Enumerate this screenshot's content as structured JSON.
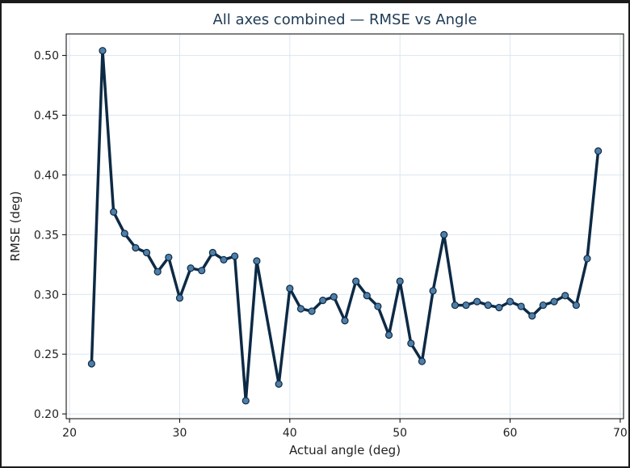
{
  "chart_data": {
    "type": "line",
    "title": "All axes combined — RMSE vs Angle",
    "xlabel": "Actual angle (deg)",
    "ylabel": "RMSE (deg)",
    "xlim": [
      19.7,
      70.3
    ],
    "ylim": [
      0.196,
      0.518
    ],
    "xticks": [
      20,
      30,
      40,
      50,
      60,
      70
    ],
    "yticks": [
      0.2,
      0.25,
      0.3,
      0.35,
      0.4,
      0.45,
      0.5
    ],
    "grid": true,
    "line_color": "#0d2a45",
    "marker_color": "#4f7fa8",
    "series": [
      {
        "x": [
          22,
          23,
          24,
          25,
          26,
          27,
          28,
          29,
          30,
          31,
          32,
          33,
          34,
          35,
          36,
          37,
          39,
          40,
          41,
          42,
          43,
          44,
          45,
          46,
          47,
          48,
          49,
          50,
          51,
          52,
          53,
          54,
          55,
          56,
          57,
          58,
          59,
          60,
          61,
          62,
          63,
          64,
          65,
          66,
          67,
          68
        ],
        "y": [
          0.242,
          0.504,
          0.369,
          0.351,
          0.339,
          0.335,
          0.319,
          0.331,
          0.297,
          0.322,
          0.32,
          0.335,
          0.329,
          0.332,
          0.211,
          0.328,
          0.225,
          0.305,
          0.288,
          0.286,
          0.295,
          0.298,
          0.278,
          0.311,
          0.299,
          0.29,
          0.266,
          0.311,
          0.259,
          0.244,
          0.303,
          0.35,
          0.291,
          0.291,
          0.294,
          0.291,
          0.289,
          0.294,
          0.29,
          0.282,
          0.291,
          0.294,
          0.299,
          0.291,
          0.33,
          0.42
        ]
      }
    ]
  }
}
